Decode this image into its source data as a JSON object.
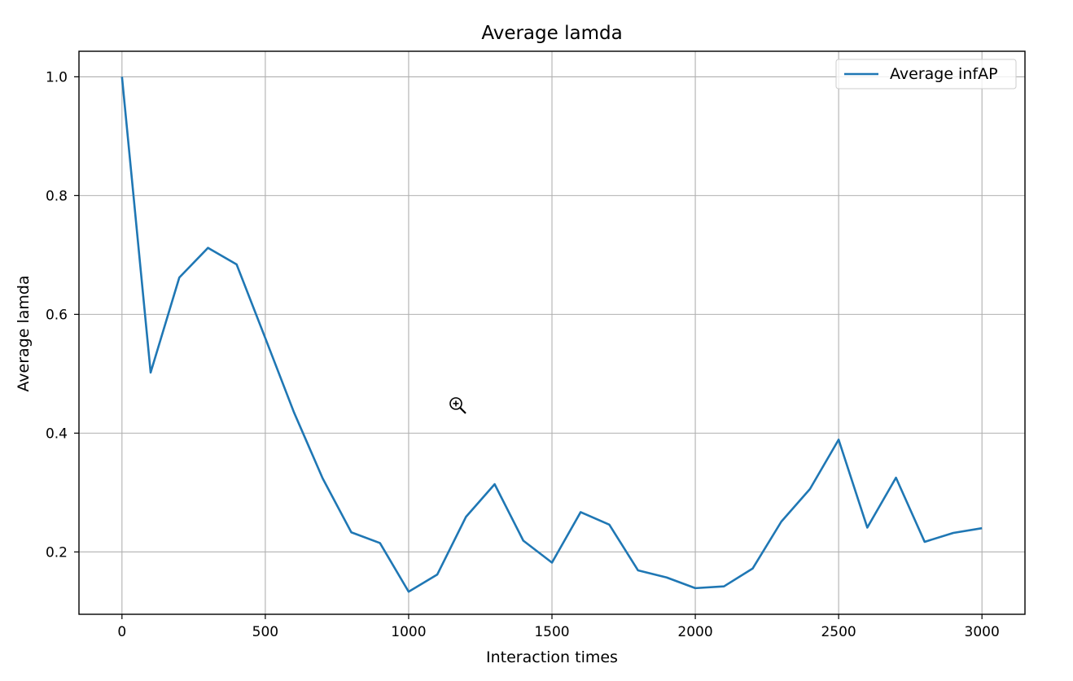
{
  "chart_data": {
    "type": "line",
    "title": "Average lamda",
    "xlabel": "Interaction times",
    "ylabel": "Average lamda",
    "xlim": [
      -150,
      3150
    ],
    "ylim": [
      0.095,
      1.043
    ],
    "xticks": [
      0,
      500,
      1000,
      1500,
      2000,
      2500,
      3000
    ],
    "xtick_labels": [
      "0",
      "500",
      "1000",
      "1500",
      "2000",
      "2500",
      "3000"
    ],
    "yticks": [
      0.2,
      0.4,
      0.6,
      0.8,
      1.0
    ],
    "ytick_labels": [
      "0.2",
      "0.4",
      "0.6",
      "0.8",
      "1.0"
    ],
    "grid": true,
    "legend_position": "top-right",
    "series": [
      {
        "name": "Average infAP",
        "color": "#1f77b4",
        "x": [
          0,
          100,
          200,
          300,
          400,
          500,
          600,
          700,
          800,
          900,
          1000,
          1100,
          1200,
          1300,
          1400,
          1500,
          1600,
          1700,
          1800,
          1900,
          2000,
          2100,
          2200,
          2300,
          2400,
          2500,
          2600,
          2700,
          2800,
          2900,
          3000
        ],
        "y": [
          1.0,
          0.502,
          0.662,
          0.712,
          0.684,
          0.56,
          0.435,
          0.324,
          0.233,
          0.215,
          0.133,
          0.162,
          0.259,
          0.314,
          0.219,
          0.182,
          0.267,
          0.246,
          0.169,
          0.157,
          0.139,
          0.142,
          0.172,
          0.251,
          0.306,
          0.389,
          0.241,
          0.325,
          0.217,
          0.232,
          0.24
        ]
      }
    ]
  }
}
